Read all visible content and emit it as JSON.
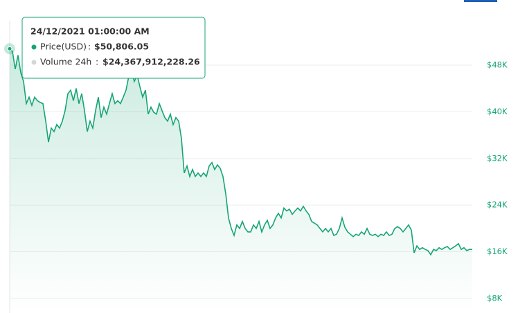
{
  "chart_data": {
    "type": "line",
    "series": [
      {
        "name": "Price(USD)",
        "color": "#16a571",
        "values": [
          50806.05,
          50300,
          47300,
          49700,
          46700,
          45200,
          41400,
          42500,
          41100,
          42500,
          41900,
          41600,
          41400,
          38400,
          34800,
          37200,
          36600,
          37800,
          37200,
          38400,
          40200,
          43100,
          43700,
          41900,
          44000,
          41400,
          43100,
          40200,
          36600,
          38400,
          37200,
          40200,
          42500,
          39000,
          40800,
          39600,
          41400,
          43100,
          41400,
          41900,
          41400,
          42500,
          43700,
          46100,
          46700,
          45200,
          46300,
          44300,
          42500,
          43700,
          39600,
          40800,
          39900,
          39600,
          41400,
          40200,
          39000,
          38400,
          39600,
          37800,
          39000,
          38400,
          35400,
          29500,
          30700,
          28900,
          30100,
          28900,
          29500,
          28900,
          29500,
          28900,
          30700,
          31300,
          30100,
          30900,
          30300,
          28900,
          25900,
          21800,
          20000,
          18800,
          20600,
          20000,
          21200,
          20000,
          19400,
          19400,
          20600,
          20000,
          21200,
          19400,
          20600,
          21400,
          20000,
          20600,
          21800,
          22600,
          21800,
          23500,
          23000,
          23300,
          22400,
          23000,
          23500,
          23000,
          23800,
          23000,
          22400,
          21200,
          20900,
          20600,
          20000,
          19400,
          20000,
          19400,
          20000,
          18800,
          19000,
          20000,
          21800,
          20200,
          19400,
          19000,
          18600,
          19000,
          18800,
          19400,
          19000,
          20000,
          19000,
          18800,
          19000,
          18600,
          19000,
          18800,
          19400,
          18800,
          19000,
          20000,
          20300,
          20000,
          19400,
          20000,
          20600,
          19700,
          15800,
          17000,
          16400,
          16700,
          16400,
          16200,
          15500,
          16400,
          16200,
          16700,
          16400,
          16700,
          16900,
          16400,
          16700,
          17000,
          17400,
          16400,
          16700,
          16200,
          16400,
          16400
        ]
      }
    ],
    "ylim": [
      5500,
      55600
    ],
    "yticks": [
      {
        "value": 8000,
        "label": "$8K"
      },
      {
        "value": 16000,
        "label": "$16K"
      },
      {
        "value": 24000,
        "label": "$24K"
      },
      {
        "value": 32000,
        "label": "$32K"
      },
      {
        "value": 40000,
        "label": "$40K"
      },
      {
        "value": 48000,
        "label": "$48K"
      }
    ],
    "grid": true,
    "tooltip": {
      "date": "24/12/2021 01:00:00 AM",
      "separator": ":",
      "items": [
        {
          "name": "Price(USD)",
          "color": "#16a571",
          "value": "$50,806.05"
        },
        {
          "name": "Volume 24h",
          "color": "#d4d6d9",
          "value": "$24,367,912,228.26"
        }
      ]
    }
  }
}
